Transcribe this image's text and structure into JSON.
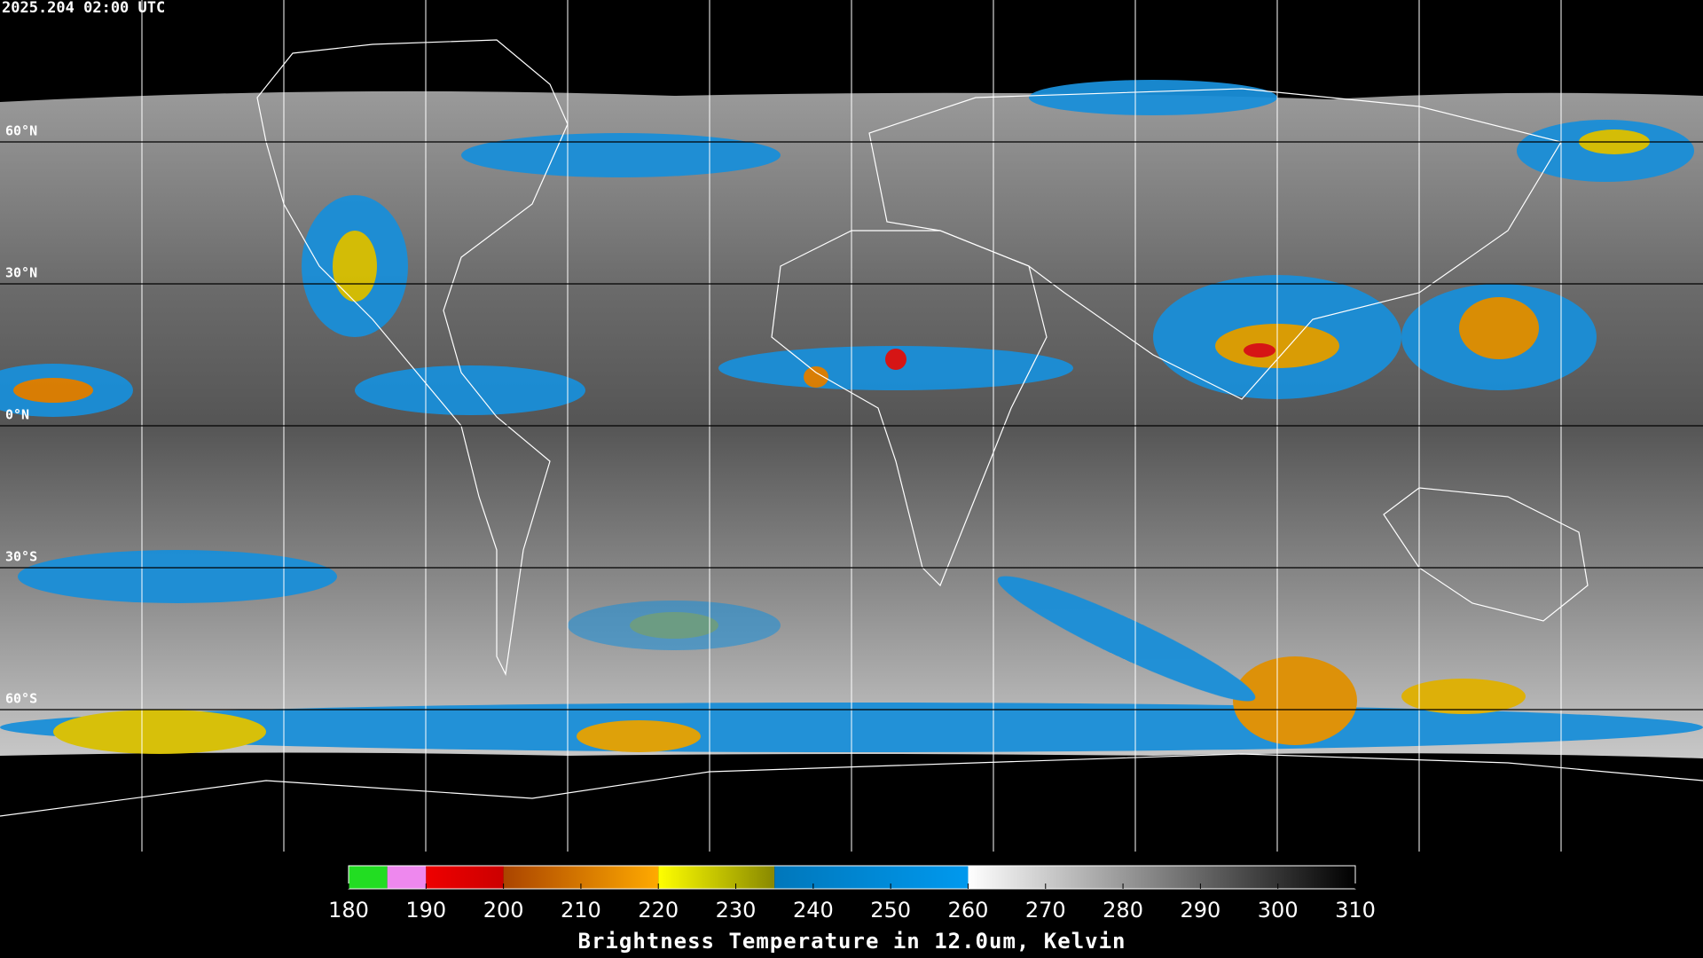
{
  "header": {
    "timestamp": "2025.204 02:00 UTC"
  },
  "latitudes": [
    {
      "value": 60,
      "label": "60°N"
    },
    {
      "value": 30,
      "label": "30°N"
    },
    {
      "value": 0,
      "label": "0°N"
    },
    {
      "value": -30,
      "label": "30°S"
    },
    {
      "value": -60,
      "label": "60°S"
    }
  ],
  "colorbar": {
    "title": "Brightness Temperature in 12.0um, Kelvin",
    "range": [
      180,
      310
    ],
    "ticks": [
      180,
      190,
      200,
      210,
      220,
      230,
      240,
      250,
      260,
      270,
      280,
      290,
      300,
      310
    ],
    "segments": [
      {
        "from": 180,
        "to": 185,
        "start": "#22dd22",
        "end": "#22dd22"
      },
      {
        "from": 185,
        "to": 190,
        "start": "#ee88ee",
        "end": "#ee88ee"
      },
      {
        "from": 190,
        "to": 200,
        "start": "#ee0000",
        "end": "#cc0000"
      },
      {
        "from": 200,
        "to": 220,
        "start": "#aa4400",
        "end": "#ffaa00"
      },
      {
        "from": 220,
        "to": 235,
        "start": "#ffff00",
        "end": "#888800"
      },
      {
        "from": 235,
        "to": 260,
        "start": "#0077bb",
        "end": "#0099ee"
      },
      {
        "from": 260,
        "to": 310,
        "start": "#ffffff",
        "end": "#000000"
      }
    ]
  }
}
